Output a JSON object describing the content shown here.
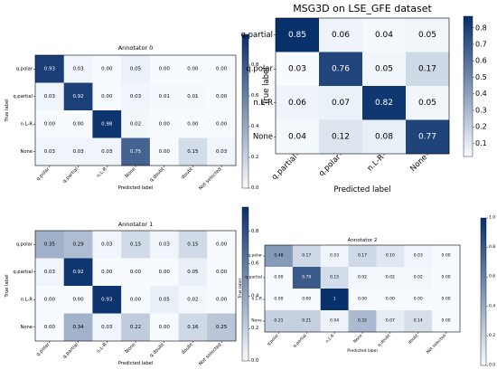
{
  "chart_data": [
    {
      "type": "heatmap",
      "title": "Annotator 0",
      "xlabel": "Predicted label",
      "ylabel": "True label",
      "row_labels": [
        "q.polar",
        "q.partial",
        "n.L-R",
        "None"
      ],
      "col_labels": [
        "q.polar",
        "q.partial",
        "n.L-R",
        "None",
        "q.doubt",
        "doubt",
        "Not selected"
      ],
      "values": [
        [
          "0.93",
          "0.03",
          "0.00",
          "0.05",
          "0.00",
          "0.00",
          "0.00"
        ],
        [
          "0.03",
          "0.92",
          "0.00",
          "0.03",
          "0.01",
          "0.01",
          "0.00"
        ],
        [
          "0.00",
          "0.00",
          "0.98",
          "0.02",
          "0.00",
          "0.00",
          "0.00"
        ],
        [
          "0.03",
          "0.03",
          "0.03",
          "0.75",
          "0.00",
          "0.15",
          "0.03"
        ]
      ],
      "colorbar_ticks": [
        "0.0",
        "0.2",
        "0.4",
        "0.6",
        "0.8"
      ],
      "color_range": [
        0,
        1.0
      ]
    },
    {
      "type": "heatmap",
      "title": "MSG3D on LSE_GFE dataset",
      "xlabel": "Predicted label",
      "ylabel": "True label",
      "row_labels": [
        "q.partial",
        "q.polar",
        "n.L-R",
        "None"
      ],
      "col_labels": [
        "q.partial",
        "q.polar",
        "n.L-R",
        "None"
      ],
      "values": [
        [
          "0.85",
          "0.06",
          "0.04",
          "0.05"
        ],
        [
          "0.03",
          "0.76",
          "0.05",
          "0.17"
        ],
        [
          "0.06",
          "0.07",
          "0.82",
          "0.05"
        ],
        [
          "0.04",
          "0.12",
          "0.08",
          "0.77"
        ]
      ],
      "colorbar_ticks": [
        "0.1",
        "0.2",
        "0.3",
        "0.4",
        "0.5",
        "0.6",
        "0.7",
        "0.8"
      ],
      "color_range": [
        0.03,
        0.85
      ]
    },
    {
      "type": "heatmap",
      "title": "Annotator 1",
      "xlabel": "Predicted label",
      "ylabel": "True label",
      "row_labels": [
        "q.polar",
        "q.partial",
        "n.L-R",
        "None"
      ],
      "col_labels": [
        "q.polar",
        "q.partial",
        "n.L-R",
        "None",
        "q.doubt",
        "doubt",
        "Not selected"
      ],
      "values": [
        [
          "0.35",
          "0.29",
          "0.03",
          "0.15",
          "0.03",
          "0.15",
          "0.00"
        ],
        [
          "0.03",
          "0.92",
          "0.00",
          "0.00",
          "0.00",
          "0.05",
          "0.00"
        ],
        [
          "0.00",
          "0.00",
          "0.93",
          "0.00",
          "0.05",
          "0.02",
          "0.00"
        ],
        [
          "0.00",
          "0.34",
          "0.03",
          "0.22",
          "0.00",
          "0.16",
          "0.25"
        ]
      ],
      "colorbar_ticks": [
        "0.0",
        "0.2",
        "0.4",
        "0.6",
        "0.8"
      ],
      "color_range": [
        0,
        0.95
      ]
    },
    {
      "type": "heatmap",
      "title": "Annotator 2",
      "xlabel": "Predicted label",
      "ylabel": "True label",
      "row_labels": [
        "q.polar",
        "q.partial",
        "n.L-R",
        "None"
      ],
      "col_labels": [
        "q.polar",
        "q.partial",
        "n.L-R",
        "None",
        "q.doubt",
        "doubt",
        "Not selected"
      ],
      "values": [
        [
          "0.48",
          "0.17",
          "0.03",
          "0.17",
          "0.10",
          "0.03",
          "0.00"
        ],
        [
          "0.00",
          "0.79",
          "0.15",
          "0.02",
          "0.02",
          "0.02",
          "0.00"
        ],
        [
          "0.00",
          "0.00",
          "1",
          "0.00",
          "0.00",
          "0.00",
          "0.00"
        ],
        [
          "0.21",
          "0.21",
          "0.04",
          "0.32",
          "0.07",
          "0.14",
          "0.00"
        ]
      ],
      "colorbar_ticks": [
        "0.0",
        "0.2",
        "0.4",
        "0.6",
        "0.8",
        "1.0"
      ],
      "color_range": [
        0,
        1.0
      ]
    }
  ]
}
